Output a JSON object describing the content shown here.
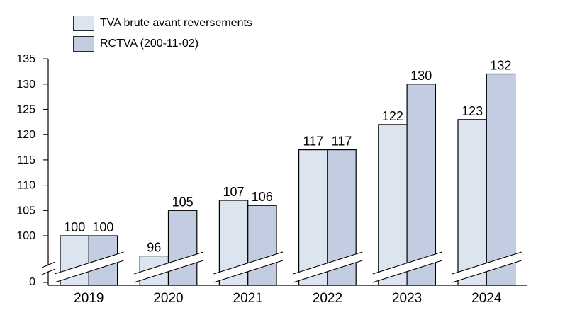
{
  "chart_data": {
    "type": "bar",
    "title": "",
    "xlabel": "",
    "ylabel": "",
    "categories": [
      "2019",
      "2020",
      "2021",
      "2022",
      "2023",
      "2024"
    ],
    "series": [
      {
        "name": "TVA brute avant reversements",
        "color": "#dce4f0",
        "values": [
          100,
          96,
          107,
          117,
          122,
          123
        ]
      },
      {
        "name": "RCTVA (200-11-02)",
        "color": "#c2cde1",
        "values": [
          100,
          105,
          106,
          117,
          130,
          132
        ]
      }
    ],
    "bar_value_labels_shown": true,
    "yticks": [
      100,
      105,
      110,
      115,
      120,
      125,
      130,
      135
    ],
    "y_axis_zero_label": "0",
    "ylim": [
      0,
      135
    ],
    "axis_break": true,
    "grid": false,
    "legend_position": "top-left",
    "axis_color": "#000000",
    "bar_border_color": "#000000",
    "background_color": "#ffffff"
  }
}
